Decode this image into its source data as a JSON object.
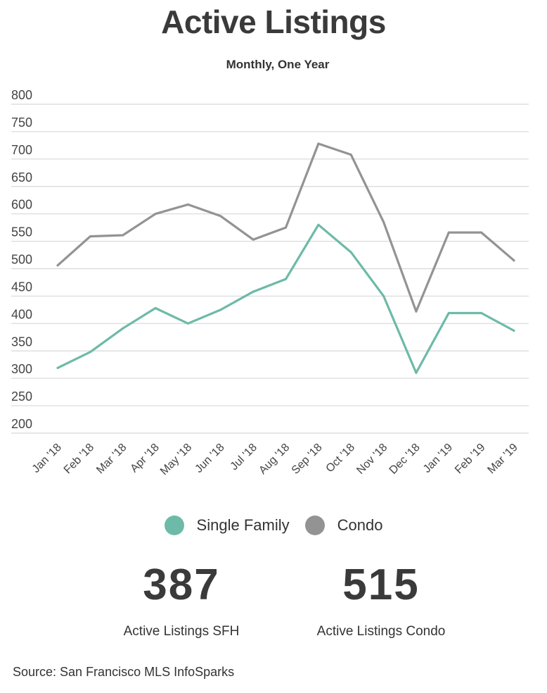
{
  "title": "Active Listings",
  "subtitle": "Monthly, One Year",
  "legend": {
    "single_family": "Single Family",
    "condo": "Condo"
  },
  "stats": {
    "sfh_value": "387",
    "sfh_label": "Active Listings SFH",
    "condo_value": "515",
    "condo_label": "Active Listings Condo"
  },
  "source": "Source:  San Francisco MLS InfoSparks",
  "colors": {
    "single_family": "#6dbaa8",
    "condo": "#939393",
    "grid": "#d8d8d8"
  },
  "chart_data": {
    "type": "line",
    "title": "Active Listings",
    "subtitle": "Monthly, One Year",
    "categories": [
      "Jan '18",
      "Feb '18",
      "Mar '18",
      "Apr '18",
      "May '18",
      "Jun '18",
      "Jul '18",
      "Aug '18",
      "Sep '18",
      "Oct '18",
      "Nov '18",
      "Dec '18",
      "Jan '19",
      "Feb '19",
      "Mar '19"
    ],
    "series": [
      {
        "name": "Single Family",
        "values": [
          319,
          348,
          391,
          428,
          400,
          425,
          458,
          481,
          580,
          530,
          450,
          310,
          419,
          419,
          387
        ]
      },
      {
        "name": "Condo",
        "values": [
          506,
          559,
          561,
          600,
          617,
          596,
          553,
          575,
          728,
          708,
          585,
          422,
          566,
          566,
          515
        ]
      }
    ],
    "ylim": [
      200,
      800
    ],
    "yticks": [
      200,
      250,
      300,
      350,
      400,
      450,
      500,
      550,
      600,
      650,
      700,
      750,
      800
    ],
    "grid": true,
    "legend_position": "bottom"
  }
}
